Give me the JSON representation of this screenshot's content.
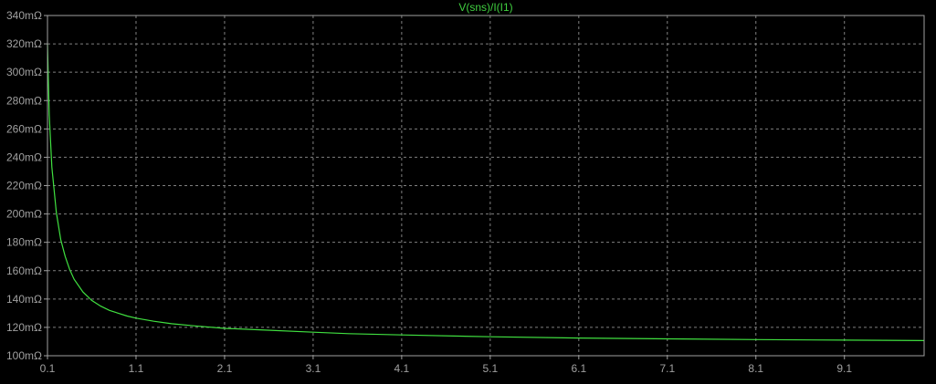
{
  "window": {
    "background": "#000000"
  },
  "chart_data": {
    "type": "line",
    "title": "V(sns)/I(I1)",
    "x_ticks": [
      "0.1",
      "1.1",
      "2.1",
      "3.1",
      "4.1",
      "5.1",
      "6.1",
      "7.1",
      "8.1",
      "9.1"
    ],
    "y_ticks": [
      "100mΩ",
      "120mΩ",
      "140mΩ",
      "160mΩ",
      "180mΩ",
      "200mΩ",
      "220mΩ",
      "240mΩ",
      "260mΩ",
      "280mΩ",
      "300mΩ",
      "320mΩ",
      "340mΩ"
    ],
    "xlim": [
      0.1,
      10.0
    ],
    "ylim": [
      100,
      340
    ],
    "grid": true,
    "series": [
      {
        "name": "V(sns)/I(I1)",
        "color": "#40e040",
        "x": [
          0.1,
          0.12,
          0.15,
          0.2,
          0.25,
          0.3,
          0.35,
          0.4,
          0.5,
          0.6,
          0.7,
          0.8,
          0.9,
          1.0,
          1.1,
          1.3,
          1.5,
          1.75,
          2.1,
          2.5,
          3.1,
          3.5,
          4.1,
          5.1,
          6.1,
          7.1,
          8.1,
          9.1,
          10.0
        ],
        "y": [
          320,
          270,
          233,
          201,
          182,
          170,
          161,
          154,
          145,
          139,
          135,
          132,
          130,
          128,
          126.5,
          124.3,
          122.6,
          121.1,
          119.3,
          118.3,
          116.6,
          115.6,
          114.7,
          113.4,
          112.5,
          111.9,
          111.4,
          111.0,
          110.7
        ]
      }
    ],
    "colors": {
      "grid": "#808080",
      "axis_text": "#a0a0a0",
      "frame": "#a0a0a0",
      "title": "#40d040"
    }
  }
}
